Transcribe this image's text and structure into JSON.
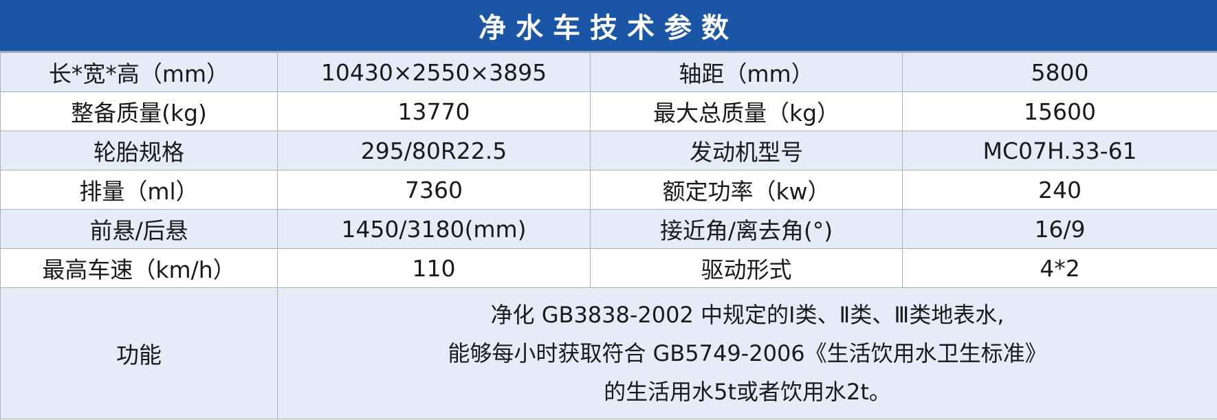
{
  "title": "净水车技术参数",
  "colors": {
    "header": "#1a56a5",
    "row_alt": "#e3ecf7"
  },
  "rows": [
    [
      "长*宽*高（mm）",
      "10430×2550×3895",
      "轴距（mm）",
      "5800"
    ],
    [
      "整备质量(kg)",
      "13770",
      "最大总质量（kg）",
      "15600"
    ],
    [
      "轮胎规格",
      "295/80R22.5",
      "发动机型号",
      "MC07H.33-61"
    ],
    [
      "排量（ml）",
      "7360",
      "额定功率（kw）",
      "240"
    ],
    [
      "前悬/后悬",
      "1450/3180(mm)",
      "接近角/离去角(°)",
      "16/9"
    ],
    [
      "最高车速（km/h）",
      "110",
      "驱动形式",
      "4*2"
    ]
  ],
  "function": {
    "label": "功能",
    "lines": [
      "净化 GB3838-2002 中规定的Ⅰ类、Ⅱ类、Ⅲ类地表水,",
      "能够每小时获取符合 GB5749-2006《生活饮用水卫生标准》",
      "的生活用水5t或者饮用水2t。"
    ]
  }
}
